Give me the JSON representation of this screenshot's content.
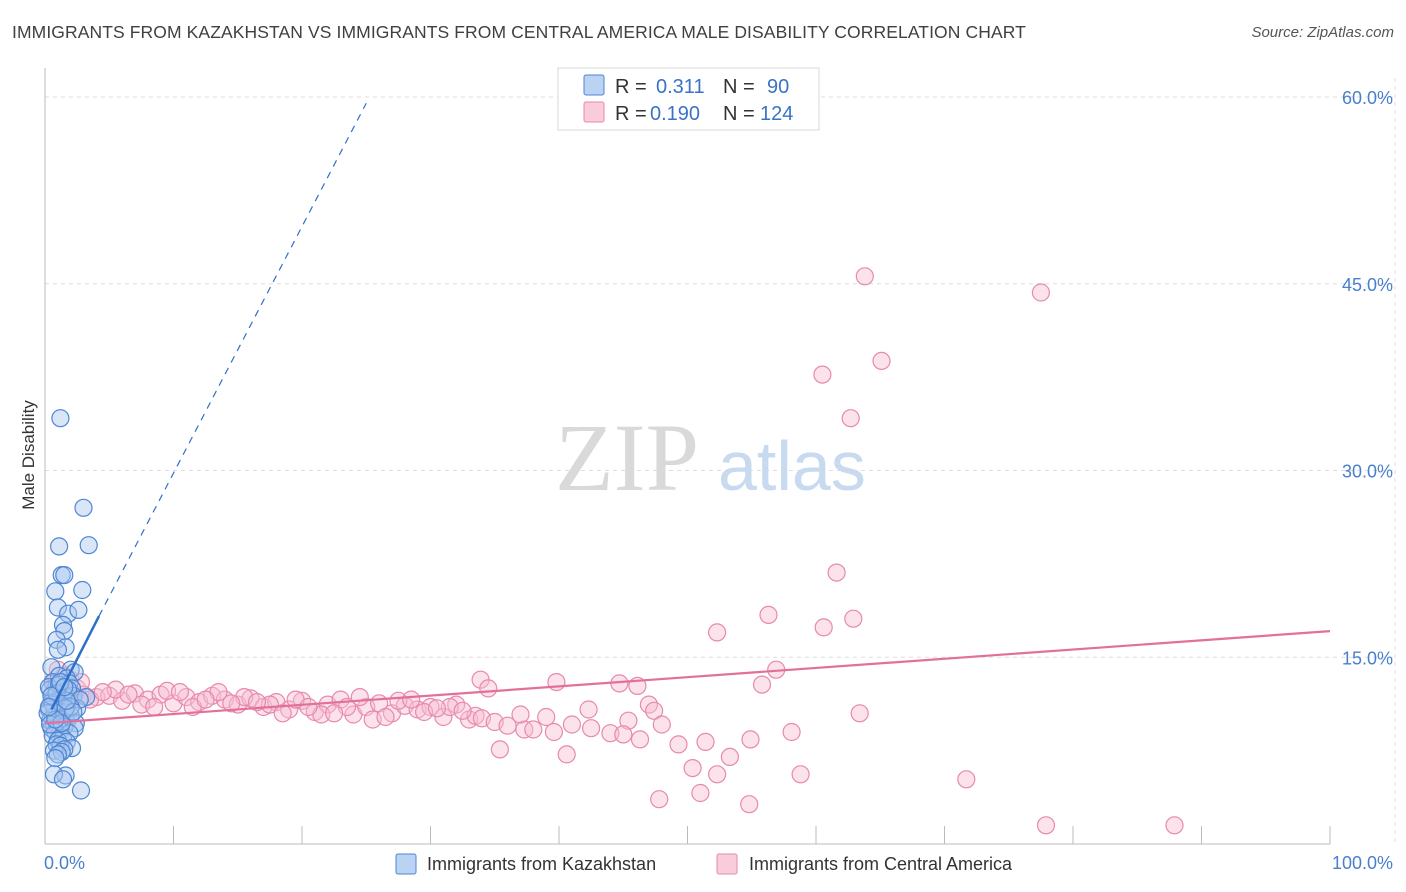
{
  "header": {
    "title": "IMMIGRANTS FROM KAZAKHSTAN VS IMMIGRANTS FROM CENTRAL AMERICA MALE DISABILITY CORRELATION CHART",
    "source": "Source: ZipAtlas.com"
  },
  "watermark": {
    "zip": "ZIP",
    "atlas": "atlas"
  },
  "legend": {
    "r_label": "R =",
    "n_label": "N =",
    "rows": [
      {
        "r": "0.311",
        "n": "90"
      },
      {
        "r": "0.190",
        "n": "124"
      }
    ]
  },
  "colors": {
    "kazakhstan_fill": "#a9c8f0",
    "kazakhstan_stroke": "#4f86d4",
    "kazakhstan_line": "#2f6fc9",
    "central_fill": "#f7bfd3",
    "central_stroke": "#e889ad",
    "central_line": "#e2709a",
    "grid": "#dddddd",
    "tick_label": "#4a7fcb"
  },
  "chart_data": {
    "type": "scatter",
    "title": "IMMIGRANTS FROM KAZAKHSTAN VS IMMIGRANTS FROM CENTRAL AMERICA MALE DISABILITY CORRELATION CHART",
    "xlabel": "",
    "ylabel": "Male Disability",
    "xlim": [
      0,
      100
    ],
    "ylim": [
      0,
      60
    ],
    "x_tick_labels": [
      "0.0%",
      "100.0%"
    ],
    "y_ticks": [
      15,
      30,
      45,
      60
    ],
    "y_tick_labels": [
      "15.0%",
      "30.0%",
      "45.0%",
      "60.0%"
    ],
    "grid": true,
    "legend_position": "top-center",
    "series": [
      {
        "name": "Immigrants from Kazakhstan",
        "r": 0.311,
        "n": 90,
        "trend": {
          "x0": 0.5,
          "y0": 10.8,
          "x1": 4.2,
          "y1": 18.3,
          "dash_to": {
            "x": 25,
            "y": 59.5
          }
        },
        "points": [
          [
            1.2,
            34.2
          ],
          [
            3.0,
            27.0
          ],
          [
            1.1,
            23.9
          ],
          [
            3.4,
            24.0
          ],
          [
            1.3,
            21.6
          ],
          [
            1.5,
            21.6
          ],
          [
            0.8,
            20.3
          ],
          [
            2.9,
            20.4
          ],
          [
            1.0,
            19.0
          ],
          [
            1.8,
            18.5
          ],
          [
            2.6,
            18.8
          ],
          [
            1.4,
            17.6
          ],
          [
            1.5,
            17.1
          ],
          [
            0.9,
            16.4
          ],
          [
            1.6,
            15.8
          ],
          [
            1.0,
            15.6
          ],
          [
            0.5,
            14.2
          ],
          [
            2.0,
            14.0
          ],
          [
            2.3,
            13.8
          ],
          [
            1.1,
            13.5
          ],
          [
            1.7,
            13.3
          ],
          [
            0.6,
            13.0
          ],
          [
            1.9,
            12.9
          ],
          [
            0.9,
            12.7
          ],
          [
            2.1,
            12.5
          ],
          [
            0.4,
            12.4
          ],
          [
            1.3,
            12.2
          ],
          [
            1.5,
            12.0
          ],
          [
            0.7,
            11.8
          ],
          [
            2.2,
            11.9
          ],
          [
            3.2,
            11.8
          ],
          [
            1.0,
            11.6
          ],
          [
            0.5,
            11.4
          ],
          [
            1.8,
            11.3
          ],
          [
            1.2,
            11.1
          ],
          [
            0.8,
            11.0
          ],
          [
            2.5,
            10.9
          ],
          [
            0.3,
            10.8
          ],
          [
            1.4,
            10.6
          ],
          [
            1.6,
            10.5
          ],
          [
            0.9,
            10.4
          ],
          [
            2.0,
            10.3
          ],
          [
            0.6,
            10.2
          ],
          [
            1.1,
            10.1
          ],
          [
            1.3,
            10.0
          ],
          [
            0.4,
            9.9
          ],
          [
            1.7,
            9.8
          ],
          [
            2.4,
            9.7
          ],
          [
            0.7,
            9.6
          ],
          [
            1.0,
            9.5
          ],
          [
            1.5,
            9.4
          ],
          [
            0.5,
            9.3
          ],
          [
            2.3,
            9.3
          ],
          [
            1.2,
            9.1
          ],
          [
            0.8,
            9.0
          ],
          [
            1.9,
            8.9
          ],
          [
            0.6,
            8.7
          ],
          [
            1.4,
            8.5
          ],
          [
            1.0,
            8.3
          ],
          [
            1.7,
            8.2
          ],
          [
            0.9,
            8.0
          ],
          [
            1.2,
            7.9
          ],
          [
            2.1,
            7.7
          ],
          [
            1.5,
            7.6
          ],
          [
            0.7,
            7.5
          ],
          [
            1.3,
            7.4
          ],
          [
            1.0,
            7.2
          ],
          [
            0.8,
            6.9
          ],
          [
            1.6,
            5.5
          ],
          [
            0.7,
            5.6
          ],
          [
            1.4,
            5.2
          ],
          [
            2.8,
            4.3
          ],
          [
            0.3,
            12.6
          ],
          [
            0.6,
            11.2
          ],
          [
            1.8,
            12.4
          ],
          [
            2.7,
            11.6
          ],
          [
            0.2,
            10.5
          ],
          [
            1.1,
            12.8
          ],
          [
            2.0,
            11.0
          ],
          [
            0.4,
            9.6
          ],
          [
            1.6,
            10.9
          ],
          [
            0.9,
            12.1
          ],
          [
            1.3,
            9.7
          ],
          [
            2.2,
            10.6
          ],
          [
            0.5,
            11.9
          ],
          [
            1.7,
            11.5
          ],
          [
            0.8,
            10.0
          ],
          [
            1.2,
            13.0
          ],
          [
            1.5,
            12.6
          ],
          [
            0.3,
            11.0
          ]
        ]
      },
      {
        "name": "Immigrants from Central America",
        "r": 0.19,
        "n": 124,
        "trend": {
          "x0": 0,
          "y0": 9.7,
          "x1": 100,
          "y1": 17.1
        },
        "points": [
          [
            63.8,
            45.6
          ],
          [
            77.5,
            44.3
          ],
          [
            60.5,
            37.7
          ],
          [
            65.1,
            38.8
          ],
          [
            62.7,
            34.2
          ],
          [
            61.6,
            21.8
          ],
          [
            56.3,
            18.4
          ],
          [
            62.9,
            18.1
          ],
          [
            60.6,
            17.4
          ],
          [
            52.3,
            17.0
          ],
          [
            33.9,
            13.2
          ],
          [
            39.8,
            13.0
          ],
          [
            56.9,
            14.0
          ],
          [
            44.7,
            12.9
          ],
          [
            46.1,
            12.7
          ],
          [
            34.5,
            12.5
          ],
          [
            55.8,
            12.8
          ],
          [
            47.0,
            11.2
          ],
          [
            42.3,
            10.8
          ],
          [
            47.4,
            10.7
          ],
          [
            63.4,
            10.5
          ],
          [
            45.4,
            9.9
          ],
          [
            58.1,
            9.0
          ],
          [
            37.3,
            9.2
          ],
          [
            39.6,
            9.0
          ],
          [
            46.3,
            8.4
          ],
          [
            48.0,
            9.6
          ],
          [
            51.4,
            8.2
          ],
          [
            49.3,
            8.0
          ],
          [
            54.9,
            8.4
          ],
          [
            35.4,
            7.6
          ],
          [
            40.6,
            7.2
          ],
          [
            53.3,
            7.0
          ],
          [
            58.8,
            5.6
          ],
          [
            50.4,
            6.1
          ],
          [
            52.3,
            5.6
          ],
          [
            71.7,
            5.2
          ],
          [
            47.8,
            3.6
          ],
          [
            51.0,
            4.1
          ],
          [
            54.8,
            3.2
          ],
          [
            77.9,
            1.5
          ],
          [
            87.9,
            1.5
          ],
          [
            1.0,
            14.0
          ],
          [
            1.5,
            13.5
          ],
          [
            2.0,
            13.2
          ],
          [
            0.8,
            12.8
          ],
          [
            2.5,
            12.5
          ],
          [
            1.2,
            12.2
          ],
          [
            3.0,
            12.0
          ],
          [
            1.8,
            11.8
          ],
          [
            0.6,
            12.9
          ],
          [
            2.2,
            11.6
          ],
          [
            4.0,
            11.8
          ],
          [
            5.0,
            11.9
          ],
          [
            6.0,
            11.5
          ],
          [
            7.0,
            12.1
          ],
          [
            8.0,
            11.6
          ],
          [
            9.0,
            12.0
          ],
          [
            10.0,
            11.3
          ],
          [
            11.0,
            11.8
          ],
          [
            12.0,
            11.4
          ],
          [
            13.0,
            11.9
          ],
          [
            14.0,
            11.6
          ],
          [
            15.0,
            11.2
          ],
          [
            16.0,
            11.7
          ],
          [
            17.0,
            11.0
          ],
          [
            18.0,
            11.4
          ],
          [
            19.0,
            10.8
          ],
          [
            20.0,
            11.5
          ],
          [
            21.0,
            10.6
          ],
          [
            22.0,
            11.2
          ],
          [
            23.0,
            11.6
          ],
          [
            24.0,
            10.4
          ],
          [
            25.0,
            11.0
          ],
          [
            26.0,
            11.3
          ],
          [
            27.0,
            10.5
          ],
          [
            28.0,
            11.1
          ],
          [
            29.0,
            10.8
          ],
          [
            30.0,
            11.0
          ],
          [
            31.0,
            10.2
          ],
          [
            32.0,
            11.2
          ],
          [
            33.0,
            10.0
          ],
          [
            5.5,
            12.4
          ],
          [
            7.5,
            11.2
          ],
          [
            9.5,
            12.3
          ],
          [
            11.5,
            11.0
          ],
          [
            13.5,
            12.2
          ],
          [
            15.5,
            11.8
          ],
          [
            17.5,
            11.2
          ],
          [
            19.5,
            11.6
          ],
          [
            21.5,
            10.4
          ],
          [
            23.5,
            11.0
          ],
          [
            25.5,
            10.0
          ],
          [
            27.5,
            11.5
          ],
          [
            29.5,
            10.6
          ],
          [
            31.5,
            11.0
          ],
          [
            33.5,
            10.3
          ],
          [
            3.5,
            11.6
          ],
          [
            4.5,
            12.2
          ],
          [
            6.5,
            12.0
          ],
          [
            8.5,
            11.0
          ],
          [
            10.5,
            12.2
          ],
          [
            12.5,
            11.6
          ],
          [
            14.5,
            11.3
          ],
          [
            16.5,
            11.4
          ],
          [
            18.5,
            10.5
          ],
          [
            20.5,
            11.0
          ],
          [
            22.5,
            10.5
          ],
          [
            24.5,
            11.8
          ],
          [
            26.5,
            10.2
          ],
          [
            28.5,
            11.6
          ],
          [
            30.5,
            10.9
          ],
          [
            32.5,
            10.7
          ],
          [
            34.0,
            10.1
          ],
          [
            35.0,
            9.8
          ],
          [
            36.0,
            9.5
          ],
          [
            37.0,
            10.4
          ],
          [
            38.0,
            9.2
          ],
          [
            39.0,
            10.2
          ],
          [
            41.0,
            9.6
          ],
          [
            42.5,
            9.3
          ],
          [
            44.0,
            8.9
          ],
          [
            45.0,
            8.8
          ],
          [
            2.8,
            13.0
          ]
        ]
      }
    ]
  },
  "bottom_legend": {
    "items": [
      "Immigrants from Kazakhstan",
      "Immigrants from Central America"
    ]
  }
}
